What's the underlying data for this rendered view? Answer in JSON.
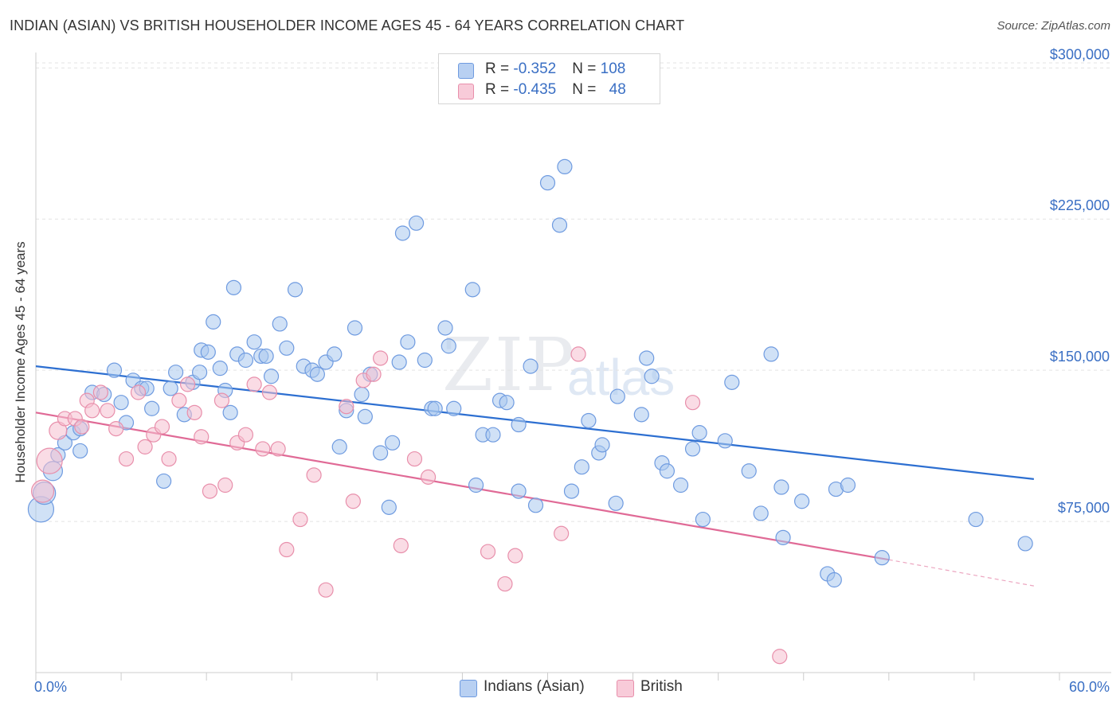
{
  "header": {
    "title": "INDIAN (ASIAN) VS BRITISH HOUSEHOLDER INCOME AGES 45 - 64 YEARS CORRELATION CHART",
    "source": "Source: ZipAtlas.com"
  },
  "watermark": {
    "zip": "ZIP",
    "atlas": "atlas"
  },
  "legend": {
    "rows": [
      {
        "r_label": "R = ",
        "r_value": "-0.352",
        "n_label": "N = ",
        "n_value": "108"
      },
      {
        "r_label": "R = ",
        "r_value": "-0.435",
        "n_label": "N = ",
        "n_value": "48"
      }
    ]
  },
  "bottom_legend": {
    "indians": "Indians (Asian)",
    "british": "British"
  },
  "chart_data": {
    "type": "scatter",
    "ylabel": "Householder Income Ages 45 - 64 years",
    "xlim": [
      0,
      60
    ],
    "ylim": [
      0,
      310000
    ],
    "x_tick_labels": [
      "0.0%",
      "60.0%"
    ],
    "y_ticks": [
      75000,
      150000,
      225000,
      300000
    ],
    "y_tick_labels": [
      "$75,000",
      "$150,000",
      "$225,000",
      "$300,000"
    ],
    "grid": "horizontal dashed",
    "legend_position": "top-center",
    "colors": {
      "indians_fill": "#aac8ef",
      "indians_stroke": "#6f9be0",
      "indians_line": "#2d6fd1",
      "british_fill": "#f6bfd0",
      "british_stroke": "#e88fab",
      "british_line": "#e06a96",
      "tick_text": "#3a6fc4"
    },
    "series": [
      {
        "name": "Indians (Asian)",
        "trend": {
          "x0": 0,
          "y0": 152000,
          "x1": 58.5,
          "y1": 96000
        },
        "points": [
          [
            0.3,
            81000,
            16
          ],
          [
            0.5,
            89000,
            14
          ],
          [
            1.0,
            100000,
            12
          ],
          [
            1.3,
            108000,
            9
          ],
          [
            1.7,
            114000,
            9
          ],
          [
            2.2,
            119000,
            9
          ],
          [
            2.6,
            121000,
            9
          ],
          [
            2.6,
            110000,
            9
          ],
          [
            3.3,
            139000,
            9
          ],
          [
            4.6,
            150000,
            9
          ],
          [
            4.0,
            138000,
            9
          ],
          [
            5.0,
            134000,
            9
          ],
          [
            5.3,
            124000,
            9
          ],
          [
            5.7,
            145000,
            9
          ],
          [
            6.2,
            141000,
            9
          ],
          [
            6.5,
            141000,
            9
          ],
          [
            6.8,
            131000,
            9
          ],
          [
            7.5,
            95000,
            9
          ],
          [
            7.9,
            141000,
            9
          ],
          [
            8.2,
            149000,
            9
          ],
          [
            8.7,
            128000,
            9
          ],
          [
            9.2,
            144000,
            9
          ],
          [
            9.6,
            149000,
            9
          ],
          [
            9.7,
            160000,
            9
          ],
          [
            10.1,
            159000,
            9
          ],
          [
            10.4,
            174000,
            9
          ],
          [
            10.8,
            151000,
            9
          ],
          [
            11.1,
            140000,
            9
          ],
          [
            11.4,
            129000,
            9
          ],
          [
            11.6,
            191000,
            9
          ],
          [
            11.8,
            158000,
            9
          ],
          [
            12.3,
            155000,
            9
          ],
          [
            12.8,
            164000,
            9
          ],
          [
            13.2,
            157000,
            9
          ],
          [
            13.5,
            157000,
            9
          ],
          [
            13.8,
            147000,
            9
          ],
          [
            14.3,
            173000,
            9
          ],
          [
            14.7,
            161000,
            9
          ],
          [
            15.2,
            190000,
            9
          ],
          [
            15.7,
            152000,
            9
          ],
          [
            16.2,
            150000,
            9
          ],
          [
            16.5,
            148000,
            9
          ],
          [
            17.0,
            154000,
            9
          ],
          [
            17.5,
            158000,
            9
          ],
          [
            17.8,
            112000,
            9
          ],
          [
            18.2,
            130000,
            9
          ],
          [
            18.7,
            171000,
            9
          ],
          [
            19.1,
            138000,
            9
          ],
          [
            19.3,
            127000,
            9
          ],
          [
            19.6,
            148000,
            9
          ],
          [
            20.2,
            109000,
            9
          ],
          [
            20.7,
            82000,
            9
          ],
          [
            20.9,
            114000,
            9
          ],
          [
            21.3,
            154000,
            9
          ],
          [
            21.5,
            218000,
            9
          ],
          [
            21.8,
            164000,
            9
          ],
          [
            22.3,
            223000,
            9
          ],
          [
            22.8,
            155000,
            9
          ],
          [
            23.2,
            131000,
            9
          ],
          [
            23.4,
            131000,
            9
          ],
          [
            24.0,
            171000,
            9
          ],
          [
            24.2,
            162000,
            9
          ],
          [
            24.5,
            131000,
            9
          ],
          [
            25.6,
            190000,
            9
          ],
          [
            25.8,
            93000,
            9
          ],
          [
            26.2,
            118000,
            9
          ],
          [
            26.8,
            118000,
            9
          ],
          [
            27.2,
            135000,
            9
          ],
          [
            27.6,
            134000,
            9
          ],
          [
            28.3,
            90000,
            9
          ],
          [
            28.3,
            123000,
            9
          ],
          [
            29.0,
            152000,
            9
          ],
          [
            29.3,
            83000,
            9
          ],
          [
            30.0,
            243000,
            9
          ],
          [
            30.7,
            222000,
            9
          ],
          [
            31.0,
            251000,
            9
          ],
          [
            31.4,
            90000,
            9
          ],
          [
            32.0,
            102000,
            9
          ],
          [
            32.4,
            125000,
            9
          ],
          [
            33.0,
            109000,
            9
          ],
          [
            33.2,
            113000,
            9
          ],
          [
            34.0,
            84000,
            9
          ],
          [
            34.1,
            137000,
            9
          ],
          [
            35.5,
            128000,
            9
          ],
          [
            35.8,
            156000,
            9
          ],
          [
            36.1,
            147000,
            9
          ],
          [
            36.7,
            104000,
            9
          ],
          [
            37.0,
            100000,
            9
          ],
          [
            37.8,
            93000,
            9
          ],
          [
            38.5,
            111000,
            9
          ],
          [
            38.9,
            119000,
            9
          ],
          [
            39.1,
            76000,
            9
          ],
          [
            40.4,
            115000,
            9
          ],
          [
            40.8,
            144000,
            9
          ],
          [
            41.8,
            100000,
            9
          ],
          [
            42.5,
            79000,
            9
          ],
          [
            43.1,
            158000,
            9
          ],
          [
            43.7,
            92000,
            9
          ],
          [
            43.8,
            67000,
            9
          ],
          [
            44.9,
            85000,
            9
          ],
          [
            46.4,
            49000,
            9
          ],
          [
            46.8,
            46000,
            9
          ],
          [
            46.9,
            91000,
            9
          ],
          [
            47.6,
            93000,
            9
          ],
          [
            49.6,
            57000,
            9
          ],
          [
            55.1,
            76000,
            9
          ],
          [
            58.0,
            64000,
            9
          ]
        ]
      },
      {
        "name": "British",
        "trend": {
          "x0": 0,
          "y0": 129000,
          "x1": 50.0,
          "y1": 56000,
          "x_dash_end": 58.5,
          "y_dash_end": 43000
        },
        "points": [
          [
            0.4,
            90000,
            14
          ],
          [
            0.8,
            105000,
            16
          ],
          [
            1.3,
            120000,
            11
          ],
          [
            1.7,
            126000,
            9
          ],
          [
            2.3,
            126000,
            9
          ],
          [
            2.7,
            122000,
            9
          ],
          [
            3.0,
            135000,
            9
          ],
          [
            3.3,
            130000,
            9
          ],
          [
            3.8,
            139000,
            9
          ],
          [
            4.2,
            130000,
            9
          ],
          [
            4.7,
            121000,
            9
          ],
          [
            5.3,
            106000,
            9
          ],
          [
            6.0,
            139000,
            9
          ],
          [
            6.4,
            112000,
            9
          ],
          [
            6.9,
            118000,
            9
          ],
          [
            7.4,
            122000,
            9
          ],
          [
            7.8,
            106000,
            9
          ],
          [
            8.4,
            135000,
            9
          ],
          [
            8.9,
            143000,
            9
          ],
          [
            9.3,
            129000,
            9
          ],
          [
            9.7,
            117000,
            9
          ],
          [
            10.2,
            90000,
            9
          ],
          [
            10.9,
            135000,
            9
          ],
          [
            11.1,
            93000,
            9
          ],
          [
            11.8,
            114000,
            9
          ],
          [
            12.3,
            118000,
            9
          ],
          [
            12.8,
            143000,
            9
          ],
          [
            13.3,
            111000,
            9
          ],
          [
            13.7,
            139000,
            9
          ],
          [
            14.2,
            111000,
            9
          ],
          [
            14.7,
            61000,
            9
          ],
          [
            15.5,
            76000,
            9
          ],
          [
            16.3,
            98000,
            9
          ],
          [
            17.0,
            41000,
            9
          ],
          [
            18.2,
            132000,
            9
          ],
          [
            18.6,
            85000,
            9
          ],
          [
            19.2,
            145000,
            9
          ],
          [
            19.8,
            148000,
            9
          ],
          [
            20.2,
            156000,
            9
          ],
          [
            21.4,
            63000,
            9
          ],
          [
            22.2,
            106000,
            9
          ],
          [
            23.0,
            97000,
            9
          ],
          [
            26.5,
            60000,
            9
          ],
          [
            27.5,
            44000,
            9
          ],
          [
            28.1,
            58000,
            9
          ],
          [
            30.8,
            69000,
            9
          ],
          [
            31.8,
            158000,
            9
          ],
          [
            38.5,
            134000,
            9
          ],
          [
            43.6,
            8000,
            9
          ]
        ]
      }
    ]
  }
}
